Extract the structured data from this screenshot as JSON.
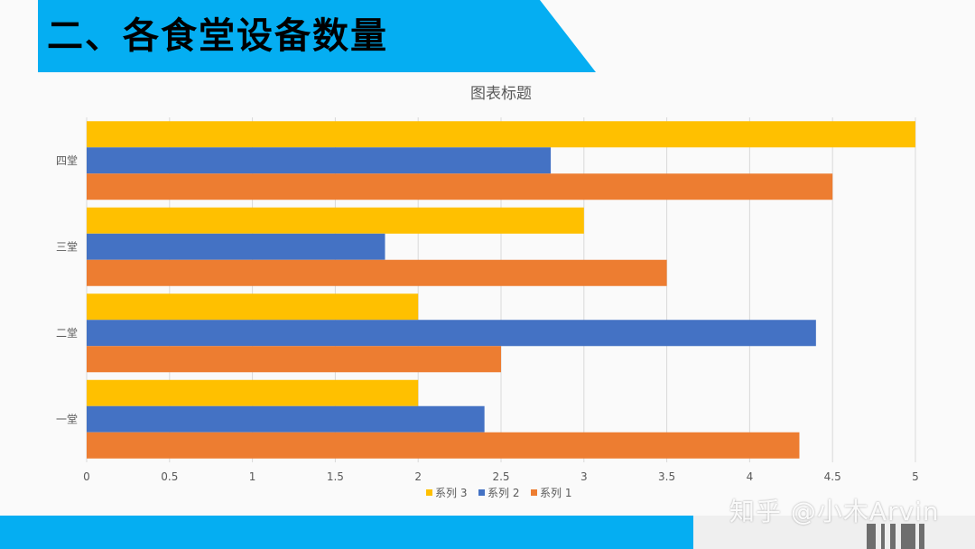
{
  "slide": {
    "title": "二、各食堂设备数量",
    "accent_color": "#05aef2",
    "watermark": "知乎 @小木Arvin"
  },
  "chart_data": {
    "type": "bar",
    "orientation": "horizontal",
    "title": "图表标题",
    "categories": [
      "一堂",
      "二堂",
      "三堂",
      "四堂"
    ],
    "series": [
      {
        "name": "系列 1",
        "color": "#ed7d31",
        "values": [
          4.3,
          2.5,
          3.5,
          4.5
        ]
      },
      {
        "name": "系列 2",
        "color": "#4472c4",
        "values": [
          2.4,
          4.4,
          1.8,
          2.8
        ]
      },
      {
        "name": "系列 3",
        "color": "#ffc000",
        "values": [
          2,
          2,
          3,
          5
        ]
      }
    ],
    "xlim": [
      0,
      5
    ],
    "x_ticks": [
      "0",
      "0.5",
      "1",
      "1.5",
      "2",
      "2.5",
      "3",
      "3.5",
      "4",
      "4.5",
      "5"
    ],
    "legend_order": [
      "系列 3",
      "系列 2",
      "系列 1"
    ],
    "legend_position": "bottom",
    "grid": true
  }
}
